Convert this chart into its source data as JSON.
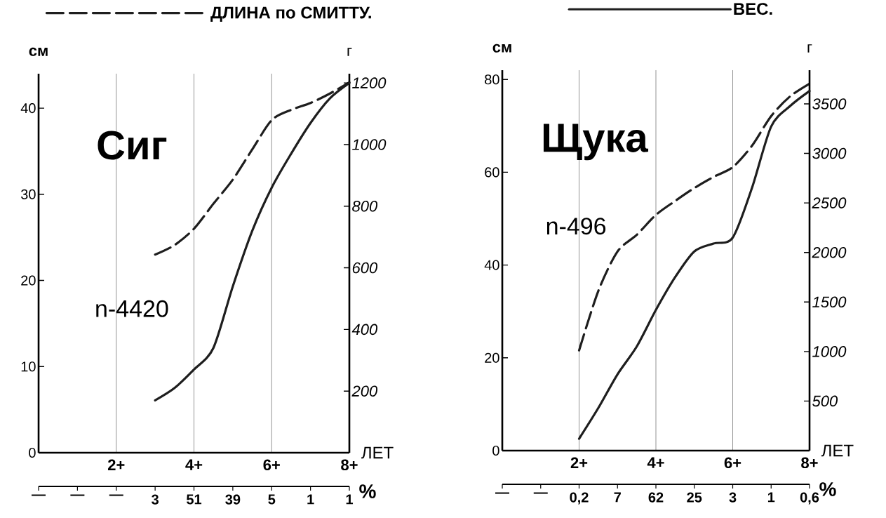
{
  "chart_data": [
    {
      "type": "line",
      "title": "Сиг",
      "xlabel": "ЛЕТ",
      "ylabel": "см",
      "y2label": "г",
      "annotations": [
        "n-4420",
        "—",
        "—",
        "—",
        "3",
        "51",
        "39",
        "5",
        "1",
        "1",
        "%"
      ],
      "categories": [
        null,
        null,
        null,
        null,
        "2+",
        null,
        null,
        null,
        "4+",
        null,
        null,
        null,
        "6+",
        null,
        null,
        null,
        "8+"
      ],
      "ylim": [
        0,
        44
      ],
      "yticks": [
        0,
        10,
        20,
        30,
        40
      ],
      "y2lim": [
        0,
        1230
      ],
      "y2ticks": [
        200,
        400,
        600,
        800,
        1000,
        1200
      ],
      "grid": "x",
      "legend": "top",
      "series": [
        {
          "name": "ДЛИНА по СМИТТУ.",
          "color": "#1e1e1e",
          "line_style": "dashed",
          "values": [
            null,
            null,
            null,
            null,
            null,
            null,
            23,
            24.1,
            26,
            28.9,
            31.7,
            35.2,
            38.6,
            39.8,
            40.6,
            41.7,
            43
          ]
        },
        {
          "color": "#1e1e1e",
          "line_style": "solid",
          "axis": "y2",
          "values": [
            null,
            null,
            null,
            null,
            null,
            null,
            170,
            210,
            270,
            340,
            540,
            720,
            860,
            970,
            1070,
            1150,
            1200
          ]
        }
      ]
    },
    {
      "type": "line",
      "title": "Щука",
      "xlabel": "ЛЕТ",
      "ylabel": "см",
      "y2label": "г",
      "annotations": [
        "n-496",
        "—",
        "—",
        "0,2",
        "7",
        "62",
        "25",
        "3",
        "1",
        "0,6",
        "%"
      ],
      "categories": [
        null,
        null,
        null,
        null,
        "2+",
        null,
        null,
        null,
        "4+",
        null,
        null,
        null,
        "6+",
        null,
        null,
        null,
        "8+"
      ],
      "ylim": [
        0,
        82
      ],
      "yticks": [
        0,
        20,
        40,
        60,
        80
      ],
      "y2lim": [
        0,
        3840
      ],
      "y2ticks": [
        500,
        1000,
        1500,
        2000,
        2500,
        3000,
        3500
      ],
      "grid": "x",
      "legend": "top",
      "series": [
        {
          "color": "#1e1e1e",
          "line_style": "dashed",
          "values": [
            null,
            null,
            null,
            null,
            21.6,
            34.4,
            42.9,
            46.5,
            50.8,
            53.8,
            56.6,
            59,
            61.1,
            65.7,
            72.1,
            76.4,
            79.1
          ]
        },
        {
          "name": "ВЕС.",
          "color": "#1e1e1e",
          "line_style": "solid",
          "axis": "y2",
          "values": [
            null,
            null,
            null,
            null,
            120,
            430,
            770,
            1050,
            1420,
            1750,
            2010,
            2090,
            2150,
            2650,
            3270,
            3480,
            3630
          ]
        }
      ]
    }
  ]
}
